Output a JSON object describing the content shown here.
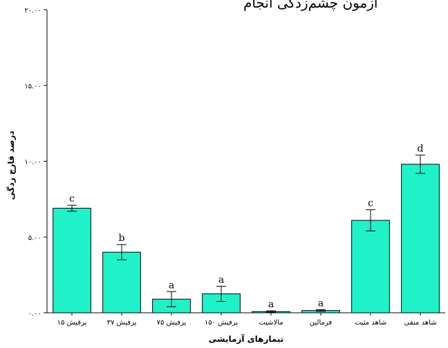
{
  "chart_data": {
    "type": "bar",
    "title": "آزمون چشم‌زدگی انجام",
    "xlabel": "تیمارهای آزمایشی",
    "ylabel": "درصد قارچ زدگی",
    "ylim": [
      0,
      20
    ],
    "yticks": [
      0,
      5,
      10,
      15,
      20
    ],
    "ytick_labels": [
      "۰.۰۰",
      "۵.۰۰",
      "۱۰.۰۰",
      "۱۵.۰۰",
      "۲۰.۰۰"
    ],
    "grid": false,
    "legend": "none",
    "bar_color": "#1FF2C9",
    "categories": [
      "پرفیش ۱۵",
      "پرفیش ۳۷",
      "پرفیش ۷۵",
      "پرفیش ۱۵۰",
      "مالاشیت",
      "فرمالین",
      "شاهد مثبت",
      "شاهد منفی"
    ],
    "values": [
      6.9,
      4.0,
      0.9,
      1.25,
      0.08,
      0.15,
      6.1,
      9.8
    ],
    "errors": [
      0.2,
      0.5,
      0.5,
      0.5,
      0.05,
      0.05,
      0.7,
      0.6
    ],
    "labels": [
      "c",
      "b",
      "a",
      "a",
      "a",
      "a",
      "c",
      "d"
    ]
  }
}
